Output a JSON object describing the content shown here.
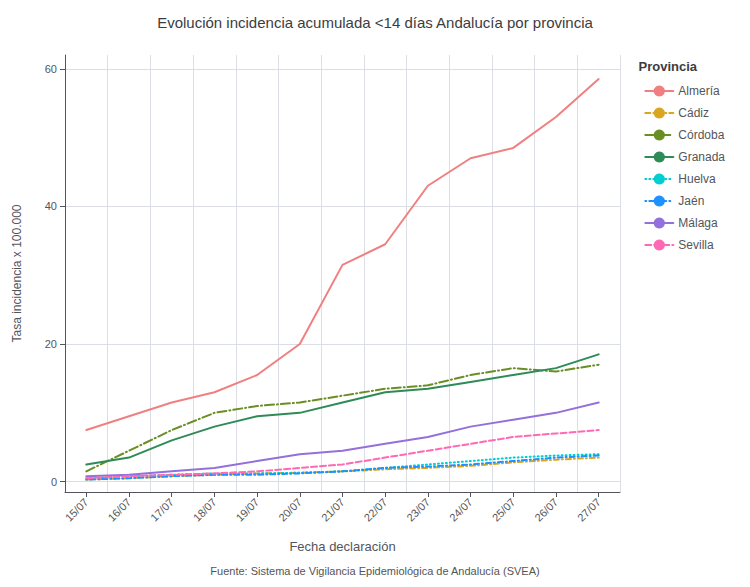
{
  "chart_data": {
    "type": "line",
    "title": "Evolución incidencia acumulada <14 días Andalucía por provincia",
    "xlabel": "Fecha declaración",
    "ylabel": "Tasa incidencia x 100.000",
    "source": "Fuente: Sistema de Vigilancia Epidemiológica de Andalucía (SVEA)",
    "legend_title": "Provincia",
    "categories": [
      "15/07",
      "16/07",
      "17/07",
      "18/07",
      "19/07",
      "20/07",
      "21/07",
      "22/07",
      "23/07",
      "24/07",
      "25/07",
      "26/07",
      "27/07"
    ],
    "series": [
      {
        "name": "Almería",
        "color": "#F08080",
        "line_style": "solid",
        "values": [
          7.5,
          9.5,
          11.5,
          13.0,
          15.5,
          20.0,
          31.5,
          34.5,
          43.0,
          47.0,
          48.5,
          53.0,
          58.5
        ]
      },
      {
        "name": "Cádiz",
        "color": "#DAA520",
        "line_style": "dashdot",
        "values": [
          0.3,
          0.5,
          0.8,
          1.0,
          1.2,
          1.3,
          1.5,
          1.8,
          2.0,
          2.3,
          2.8,
          3.2,
          3.5
        ]
      },
      {
        "name": "Córdoba",
        "color": "#6B8E23",
        "line_style": "longdashdot",
        "values": [
          1.5,
          4.5,
          7.5,
          10.0,
          11.0,
          11.5,
          12.5,
          13.5,
          14.0,
          15.5,
          16.5,
          16.0,
          17.0
        ]
      },
      {
        "name": "Granada",
        "color": "#2E8B57",
        "line_style": "solid",
        "values": [
          2.5,
          3.5,
          6.0,
          8.0,
          9.5,
          10.0,
          11.5,
          13.0,
          13.5,
          14.5,
          15.5,
          16.5,
          18.5
        ]
      },
      {
        "name": "Huelva",
        "color": "#00CED1",
        "line_style": "dotted",
        "values": [
          0.5,
          0.8,
          1.0,
          1.2,
          1.2,
          1.3,
          1.5,
          2.0,
          2.5,
          3.0,
          3.5,
          3.8,
          4.0
        ]
      },
      {
        "name": "Jaén",
        "color": "#1E90FF",
        "line_style": "dotdash",
        "values": [
          0.3,
          0.5,
          0.8,
          1.0,
          1.0,
          1.2,
          1.5,
          2.0,
          2.2,
          2.5,
          3.0,
          3.5,
          3.8
        ]
      },
      {
        "name": "Málaga",
        "color": "#9370DB",
        "line_style": "solid",
        "values": [
          0.8,
          1.0,
          1.5,
          2.0,
          3.0,
          4.0,
          4.5,
          5.5,
          6.5,
          8.0,
          9.0,
          10.0,
          11.5
        ]
      },
      {
        "name": "Sevilla",
        "color": "#FF69B4",
        "line_style": "dashed",
        "values": [
          0.5,
          0.8,
          1.0,
          1.2,
          1.5,
          2.0,
          2.5,
          3.5,
          4.5,
          5.5,
          6.5,
          7.0,
          7.5
        ]
      }
    ],
    "ylim": [
      -1.5,
      62
    ],
    "yticks": [
      0,
      20,
      40,
      60
    ],
    "grid": true,
    "legend": "right"
  }
}
